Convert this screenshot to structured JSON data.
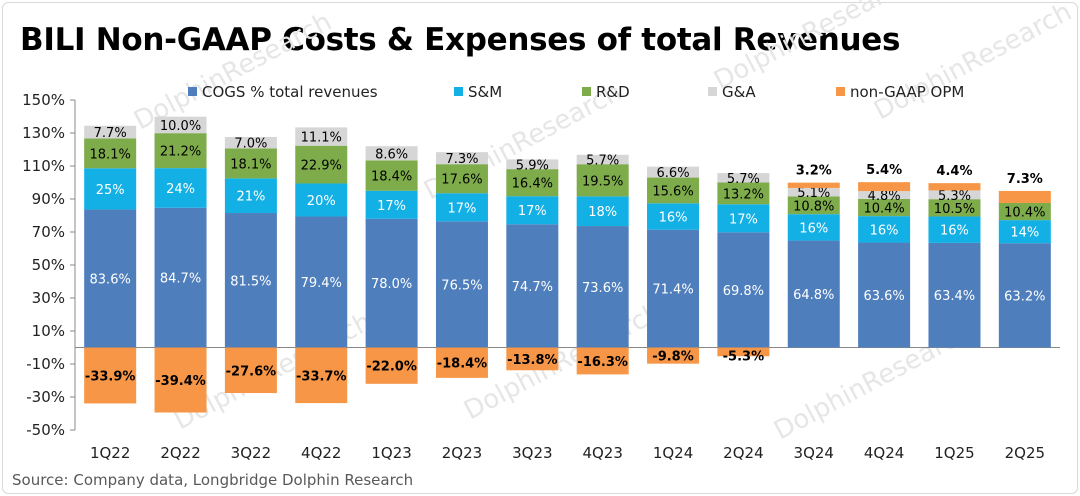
{
  "title": "BILI Non-GAAP Costs & Expenses of total Revenues",
  "source": "Source: Company data, Longbridge Dolphin Research",
  "watermark": "DolphinResearch",
  "colors": {
    "cogs": "#4e7ebc",
    "sm": "#13b0e6",
    "rd": "#7eac4b",
    "ga": "#d6d6d6",
    "opm": "#f79646"
  },
  "chart_data": {
    "type": "bar",
    "stacked": true,
    "title": "BILI Non-GAAP Costs & Expenses of total Revenues",
    "categories": [
      "1Q22",
      "2Q22",
      "3Q22",
      "4Q22",
      "1Q23",
      "2Q23",
      "3Q23",
      "4Q23",
      "1Q24",
      "2Q24",
      "3Q24",
      "4Q24",
      "1Q25",
      "2Q25"
    ],
    "ylim": [
      -50,
      150
    ],
    "yticks": [
      "150%",
      "130%",
      "110%",
      "90%",
      "70%",
      "50%",
      "30%",
      "10%",
      "-10%",
      "-30%",
      "-50%"
    ],
    "legend_position": "top",
    "series": [
      {
        "key": "cogs",
        "name": "COGS % total revenues",
        "values": [
          83.6,
          84.7,
          81.5,
          79.4,
          78.0,
          76.5,
          74.7,
          73.6,
          71.4,
          69.8,
          64.8,
          63.6,
          63.4,
          63.2
        ],
        "labels": [
          "83.6%",
          "84.7%",
          "81.5%",
          "79.4%",
          "78.0%",
          "76.5%",
          "74.7%",
          "73.6%",
          "71.4%",
          "69.8%",
          "64.8%",
          "63.6%",
          "63.4%",
          "63.2%"
        ]
      },
      {
        "key": "sm",
        "name": "S&M",
        "values": [
          25,
          24,
          21,
          20,
          17,
          17,
          17,
          18,
          16,
          17,
          16,
          16,
          16,
          14
        ],
        "labels": [
          "25%",
          "24%",
          "21%",
          "20%",
          "17%",
          "17%",
          "17%",
          "18%",
          "16%",
          "17%",
          "16%",
          "16%",
          "16%",
          "14%"
        ]
      },
      {
        "key": "rd",
        "name": "R&D",
        "values": [
          18.1,
          21.2,
          18.1,
          22.9,
          18.4,
          17.6,
          16.4,
          19.5,
          15.6,
          13.2,
          10.8,
          10.4,
          10.5,
          10.4
        ],
        "labels": [
          "18.1%",
          "21.2%",
          "18.1%",
          "22.9%",
          "18.4%",
          "17.6%",
          "16.4%",
          "19.5%",
          "15.6%",
          "13.2%",
          "10.8%",
          "10.4%",
          "10.5%",
          "10.4%"
        ]
      },
      {
        "key": "ga",
        "name": "G&A",
        "values": [
          7.7,
          10.0,
          7.0,
          11.1,
          8.6,
          7.3,
          5.9,
          5.7,
          6.6,
          5.7,
          5.1,
          4.8,
          5.3,
          null
        ],
        "labels": [
          "7.7%",
          "10.0%",
          "7.0%",
          "11.1%",
          "8.6%",
          "7.3%",
          "5.9%",
          "5.7%",
          "6.6%",
          "5.7%",
          "5.1%",
          "4.8%",
          "5.3%",
          ""
        ]
      },
      {
        "key": "opm",
        "name": "non-GAAP OPM",
        "values": [
          -33.9,
          -39.4,
          -27.6,
          -33.7,
          -22.0,
          -18.4,
          -13.8,
          -16.3,
          -9.8,
          -5.3,
          3.2,
          5.4,
          4.4,
          7.3
        ],
        "labels": [
          "-33.9%",
          "-39.4%",
          "-27.6%",
          "-33.7%",
          "-22.0%",
          "-18.4%",
          "-13.8%",
          "-16.3%",
          "-9.8%",
          "-5.3%",
          "3.2%",
          "5.4%",
          "4.4%",
          "7.3%"
        ]
      }
    ]
  }
}
